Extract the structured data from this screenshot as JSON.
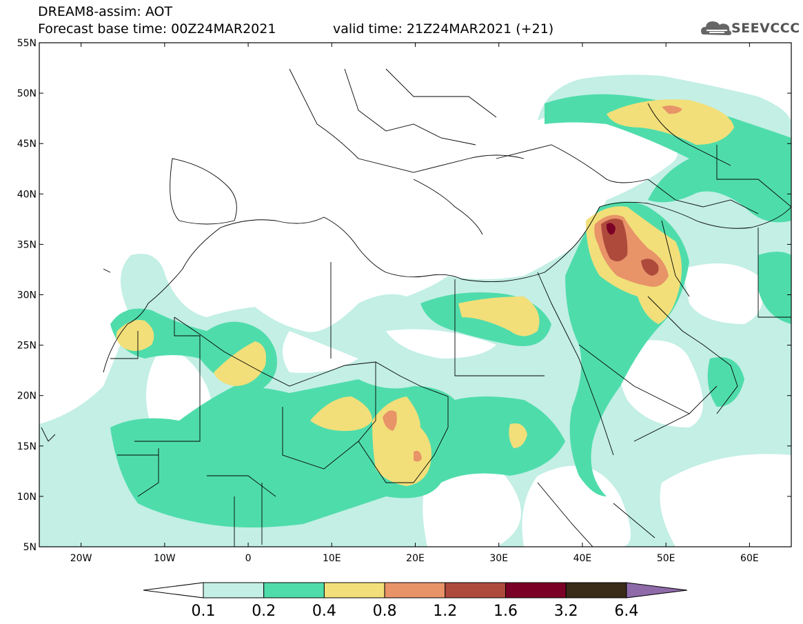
{
  "title": {
    "line1": "DREAM8-assim: AOT",
    "line2": "Forecast base time: 00Z24MAR2021",
    "valid": "valid time: 21Z24MAR2021 (+21)"
  },
  "logo": {
    "text": "SEEVCCC",
    "icon": "cloud-icon"
  },
  "map": {
    "variable": "AOT",
    "lon_range": [
      -25,
      65
    ],
    "lat_range": [
      5,
      55
    ],
    "lon_ticks": [
      "20W",
      "10W",
      "0",
      "10E",
      "20E",
      "30E",
      "40E",
      "50E",
      "60E"
    ],
    "lat_ticks": [
      "55N",
      "50N",
      "45N",
      "40N",
      "35N",
      "30N",
      "25N",
      "20N",
      "15N",
      "10N",
      "5N"
    ]
  },
  "colorbar": {
    "labels": [
      "0.1",
      "0.2",
      "0.4",
      "0.8",
      "1.2",
      "1.6",
      "3.2",
      "6.4"
    ],
    "colors": [
      "#ffffff",
      "#c3efe5",
      "#4fdcab",
      "#f2df7a",
      "#e89368",
      "#ae4a3c",
      "#7b0025",
      "#3a2a18",
      "#8e6aa8"
    ]
  }
}
